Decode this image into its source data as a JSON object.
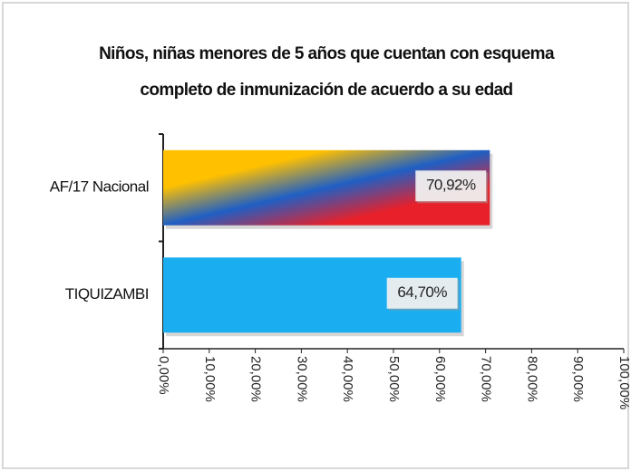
{
  "chart_data": {
    "type": "hbar",
    "title": [
      "Niños, niñas menores de 5 años que cuentan con esquema",
      "completo de inmunización de acuerdo a su edad"
    ],
    "categories": [
      "AF/17 Nacional",
      "TIQUIZAMBI"
    ],
    "values": [
      70.92,
      64.7
    ],
    "value_labels": [
      "70,92%",
      "64,70%"
    ],
    "bar_colors": [
      [
        "#ffc000",
        "#1f5fc4",
        "#e8202a"
      ],
      [
        "#1aaef0"
      ]
    ],
    "xlim": [
      0,
      100
    ],
    "xticks": [
      {
        "value": 0,
        "label": "0,00%"
      },
      {
        "value": 10,
        "label": "10,00%"
      },
      {
        "value": 20,
        "label": "20,00%"
      },
      {
        "value": 30,
        "label": "30,00%"
      },
      {
        "value": 40,
        "label": "40,00%"
      },
      {
        "value": 50,
        "label": "50,00%"
      },
      {
        "value": 60,
        "label": "60,00%"
      },
      {
        "value": 70,
        "label": "70,00%"
      },
      {
        "value": 80,
        "label": "80,00%"
      },
      {
        "value": 90,
        "label": "90,00%"
      },
      {
        "value": 100,
        "label": "100,00%"
      }
    ]
  }
}
